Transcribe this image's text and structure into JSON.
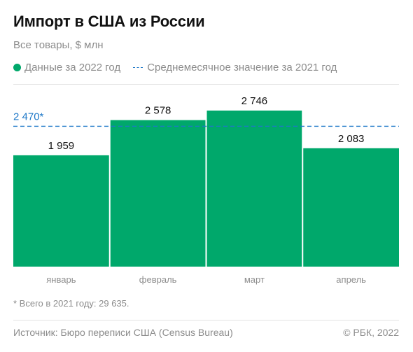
{
  "title": "Импорт в США из России",
  "subtitle": "Все товары, $ млн",
  "legend": {
    "series_label": "Данные за 2022 год",
    "average_label": "Среднемесячное значение за 2021 год"
  },
  "colors": {
    "bar": "#00a86b",
    "average_line": "#1e78c8",
    "axis_text": "#8c8c8c"
  },
  "chart_data": {
    "type": "bar",
    "categories": [
      "январь",
      "февраль",
      "март",
      "апрель"
    ],
    "series": [
      {
        "name": "Данные за 2022 год",
        "values": [
          1959,
          2578,
          2746,
          2083
        ]
      }
    ],
    "value_labels": [
      "1 959",
      "2 578",
      "2 746",
      "2 083"
    ],
    "reference_line": {
      "name": "Среднемесячное значение за 2021 год",
      "value": 2470,
      "label": "2 470*"
    },
    "ylim": [
      0,
      2746
    ],
    "grid": false,
    "legend_position": "top-left"
  },
  "footnote": "* Всего в 2021 году: 29 635.",
  "source": "Источник: Бюро переписи США (Census Bureau)",
  "copyright": "© РБК, 2022"
}
